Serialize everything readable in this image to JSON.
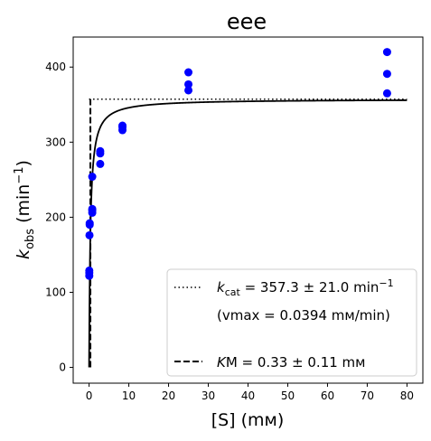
{
  "chart_data": {
    "type": "scatter",
    "title": "eee",
    "xlabel": "[S] (mм)",
    "ylabel_main": "k",
    "ylabel_sub": "obs",
    "ylabel_unit_pre": " (min",
    "ylabel_unit_sup": "−1",
    "ylabel_unit_post": ")",
    "xlim": [
      -4,
      84
    ],
    "ylim": [
      -21,
      440
    ],
    "xticks": [
      0,
      10,
      20,
      30,
      40,
      50,
      60,
      70,
      80
    ],
    "yticks": [
      0,
      100,
      200,
      300,
      400
    ],
    "grid": false,
    "kcat": 357.3,
    "KM": 0.33,
    "curve_x_range": [
      0.0,
      80.0
    ],
    "series": [
      {
        "type": "scatter",
        "color": "#0000ff",
        "points": [
          [
            0.05,
            122
          ],
          [
            0.05,
            126
          ],
          [
            0.05,
            129
          ],
          [
            0.1,
            176
          ],
          [
            0.15,
            190
          ],
          [
            0.15,
            192
          ],
          [
            0.8,
            206
          ],
          [
            0.8,
            209
          ],
          [
            0.8,
            211
          ],
          [
            0.8,
            254
          ],
          [
            2.8,
            271
          ],
          [
            2.8,
            285
          ],
          [
            2.8,
            288
          ],
          [
            8.4,
            316
          ],
          [
            8.4,
            320
          ],
          [
            8.4,
            322
          ],
          [
            25.0,
            369
          ],
          [
            25.0,
            377
          ],
          [
            25.0,
            393
          ],
          [
            75.0,
            365
          ],
          [
            75.0,
            391
          ],
          [
            75.0,
            420
          ]
        ]
      }
    ],
    "legend": {
      "placement": "lower-right",
      "entries": [
        {
          "style": "dotted",
          "text_main": "k",
          "text_sub": "cat",
          "text_rest": " = 357.3 ± 21.0 min",
          "text_sup": "−1"
        },
        {
          "style": "none",
          "text": "(vmax = 0.0394 mм/min)"
        },
        {
          "style": "none",
          "text": ""
        },
        {
          "style": "dashed",
          "text_main": "K",
          "text_rest": "M = 0.33 ± 0.11 mм"
        }
      ]
    }
  }
}
